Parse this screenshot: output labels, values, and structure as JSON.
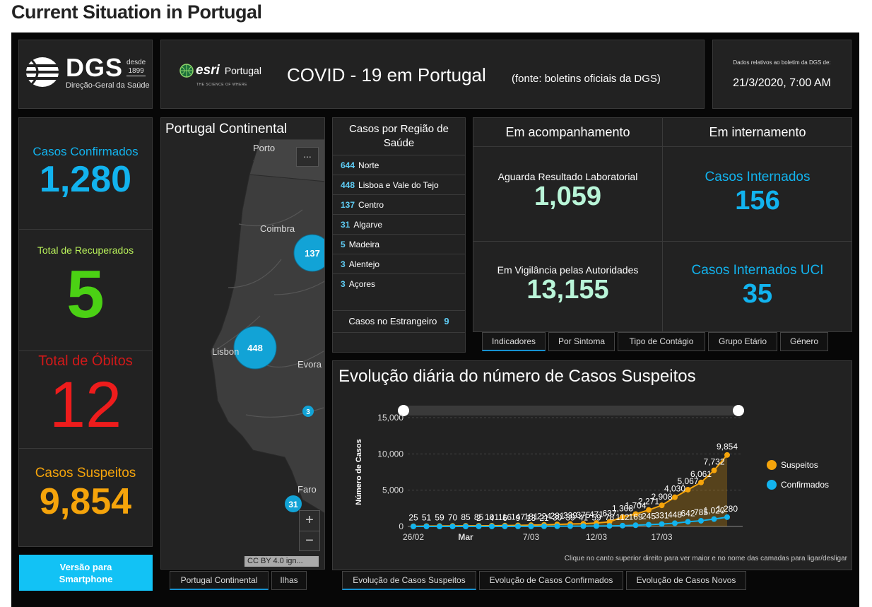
{
  "page_title": "Current Situation in Portugal",
  "logo": {
    "name": "DGS",
    "since_label": "desde",
    "since_year": "1899",
    "subtitle": "Direção-Geral da Saúde"
  },
  "header": {
    "esri_name": "esri",
    "esri_country": "Portugal",
    "esri_tagline": "THE SCIENCE OF WHERE",
    "title": "COVID - 19 em Portugal",
    "source": "(fonte: boletins oficiais da DGS)"
  },
  "date_panel": {
    "label": "Dados relativos ao boletim da DGS de:",
    "value": "21/3/2020, 7:00 AM"
  },
  "stats": {
    "confirmed": {
      "label": "Casos Confirmados",
      "value": "1,280",
      "color": "#12b3ee"
    },
    "recovered": {
      "label": "Total de Recuperados",
      "value": "5",
      "color": "#4bd114"
    },
    "deaths": {
      "label": "Total de Óbitos",
      "value": "12",
      "color": "#ee1c1c"
    },
    "suspected": {
      "label": "Casos Suspeitos",
      "value": "9,854",
      "color": "#f5a40b"
    }
  },
  "smartphone_button": {
    "line1": "Versão para",
    "line2": "Smartphone"
  },
  "map": {
    "title": "Portugal Continental",
    "more_label": "...",
    "zoom_in": "+",
    "zoom_out": "−",
    "attribution": "CC BY 4.0 ign...",
    "cities": [
      "Porto",
      "Coimbra",
      "Lisbon",
      "Evora",
      "Faro"
    ],
    "clusters": [
      "137",
      "448",
      "3",
      "31"
    ],
    "tabs": [
      "Portugal Continental",
      "Ilhas"
    ]
  },
  "regions": {
    "title": "Casos por Região de Saúde",
    "items": [
      {
        "value": "644",
        "name": "Norte"
      },
      {
        "value": "448",
        "name": "Lisboa e Vale do Tejo"
      },
      {
        "value": "137",
        "name": "Centro"
      },
      {
        "value": "31",
        "name": "Algarve"
      },
      {
        "value": "5",
        "name": "Madeira"
      },
      {
        "value": "3",
        "name": "Alentejo"
      },
      {
        "value": "3",
        "name": "Açores"
      }
    ],
    "abroad_label": "Casos no Estrangeiro",
    "abroad_value": "9"
  },
  "indicators": {
    "head_left": "Em acompanhamento",
    "head_right": "Em internamento",
    "awaiting": {
      "label": "Aguarda Resultado Laboratorial",
      "value": "1,059"
    },
    "surveillance": {
      "label": "Em Vigilância pelas Autoridades",
      "value": "13,155"
    },
    "hospitalized": {
      "label": "Casos Internados",
      "value": "156"
    },
    "icu": {
      "label": "Casos Internados UCI",
      "value": "35"
    },
    "tabs": [
      "Indicadores",
      "Por Sintoma",
      "Tipo de Contágio",
      "Grupo Etário",
      "Género"
    ]
  },
  "chart": {
    "title": "Evolução diária do número de Casos Suspeitos",
    "note": "Clique no canto superior direito para ver maior e no nome das camadas para ligar/desligar",
    "tabs": [
      "Evolução de Casos Suspeitos",
      "Evolução de Casos Confirmados",
      "Evolução de Casos Novos"
    ]
  },
  "chart_data": {
    "type": "line",
    "title": "Evolução diária do número de Casos Suspeitos",
    "ylabel": "Número de Casos",
    "xlabel": "",
    "ylim": [
      0,
      15000
    ],
    "yticks": [
      "0",
      "5,000",
      "10,000",
      "15,000"
    ],
    "xticks": [
      "26/02",
      "Mar",
      "7/03",
      "12/03",
      "17/03"
    ],
    "legend_position": "right",
    "colors": {
      "Suspeitos": "#f5a40b",
      "Confirmados": "#12b3ee"
    },
    "x": [
      "26/02",
      "27/02",
      "28/02",
      "29/02",
      "01/03",
      "02/03",
      "03/03",
      "04/03",
      "05/03",
      "06/03",
      "07/03",
      "08/03",
      "09/03",
      "10/03",
      "11/03",
      "12/03",
      "13/03",
      "14/03",
      "15/03",
      "16/03",
      "17/03",
      "18/03",
      "19/03",
      "20/03",
      "21/03"
    ],
    "series": [
      {
        "name": "Suspeitos",
        "values": [
          25,
          51,
          59,
          70,
          85,
          85,
          101,
          116,
          147,
          181,
          224,
          281,
          339,
          375,
          471,
          637,
          1308,
          1704,
          2271,
          2908,
          4030,
          5067,
          6061,
          7732,
          9854
        ]
      },
      {
        "name": "Confirmados",
        "values": [
          0,
          0,
          0,
          0,
          0,
          2,
          4,
          6,
          9,
          13,
          21,
          30,
          39,
          41,
          59,
          78,
          112,
          169,
          245,
          331,
          448,
          642,
          785,
          1020,
          1280
        ]
      }
    ],
    "data_labels": {
      "Suspeitos": [
        "25",
        "51",
        "59",
        "70",
        "85",
        "85",
        "101",
        "116",
        "147",
        "181",
        "224",
        "281",
        "339",
        "375",
        "471",
        "637",
        "1,308",
        "1,704",
        "2,271",
        "2,908",
        "4,030",
        "5,067",
        "6,061",
        "7,732",
        "9,854"
      ],
      "Confirmados": [
        "",
        "",
        "",
        "",
        "",
        "2",
        "4",
        "6",
        "9",
        "13",
        "21",
        "30",
        "39",
        "41",
        "59",
        "78",
        "112",
        "169",
        "245",
        "331",
        "448",
        "642",
        "785",
        "1,020",
        "1,280"
      ]
    }
  }
}
